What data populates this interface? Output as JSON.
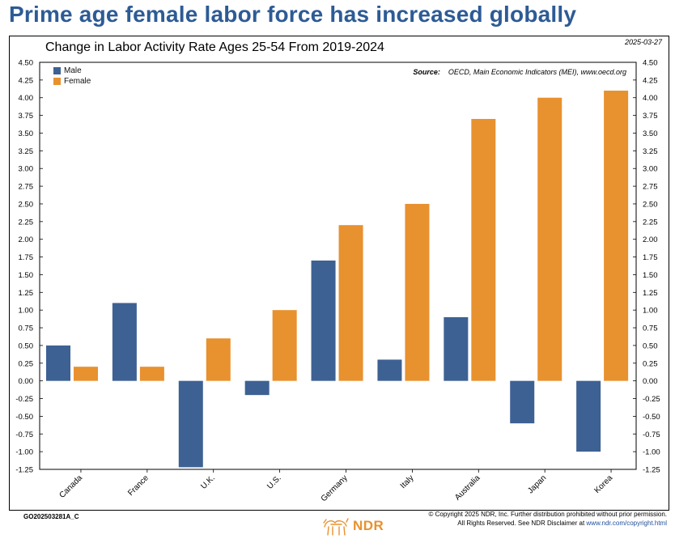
{
  "headline": "Prime age female labor force has increased globally",
  "date": "2025-03-27",
  "source_label": "Source:",
  "source_text": "OECD, Main Economic Indicators (MEI), www.oecd.org",
  "doc_code": "GO202503281A_C",
  "copyright_line1": "© Copyright 2025 NDR, Inc. Further distribution prohibited without prior permission.",
  "copyright_line2_prefix": "All Rights Reserved. See NDR Disclaimer at ",
  "copyright_link": "www.ndr.com/copyright.html",
  "logo_text": "NDR",
  "colors": {
    "male": "#3d6193",
    "female": "#e8912f",
    "headline": "#2d5b95"
  },
  "chart_data": {
    "type": "bar",
    "title": "Change in Labor Activity Rate Ages 25-54 From 2019-2024",
    "xlabel": "",
    "ylabel": "",
    "ylim": [
      -1.25,
      4.5
    ],
    "ytick_step": 0.25,
    "grid": false,
    "legend_position": "top-left",
    "categories": [
      "Canada",
      "France",
      "U.K.",
      "U.S.",
      "Germany",
      "Italy",
      "Australia",
      "Japan",
      "Korea"
    ],
    "series": [
      {
        "name": "Male",
        "values": [
          0.5,
          1.1,
          -1.22,
          -0.2,
          1.7,
          0.3,
          0.9,
          -0.6,
          -1.0
        ]
      },
      {
        "name": "Female",
        "values": [
          0.2,
          0.2,
          0.6,
          1.0,
          2.2,
          2.5,
          3.7,
          4.0,
          4.1
        ]
      }
    ]
  }
}
